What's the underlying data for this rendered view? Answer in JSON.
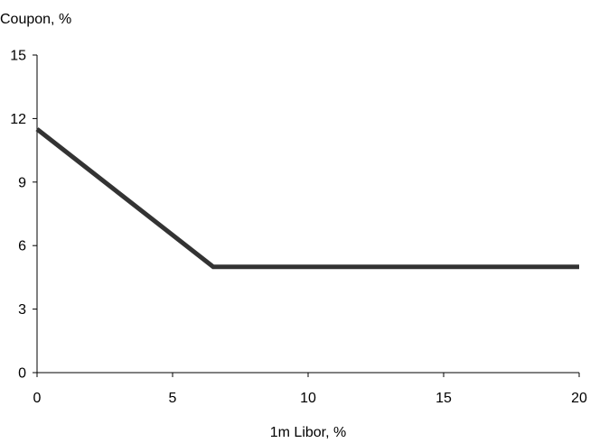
{
  "chart_data": {
    "type": "line",
    "title": "",
    "xlabel": "1m Libor, %",
    "ylabel": "Coupon, %",
    "xlim": [
      0,
      20
    ],
    "ylim": [
      0,
      15
    ],
    "x_ticks": [
      "0",
      "5",
      "10",
      "15",
      "20"
    ],
    "y_ticks": [
      "0",
      "3",
      "6",
      "9",
      "12",
      "15"
    ],
    "grid": false,
    "legend": "none",
    "series": [
      {
        "color": "#333333",
        "x": [
          0,
          6.5,
          20
        ],
        "y": [
          11.5,
          5,
          5
        ]
      }
    ]
  }
}
